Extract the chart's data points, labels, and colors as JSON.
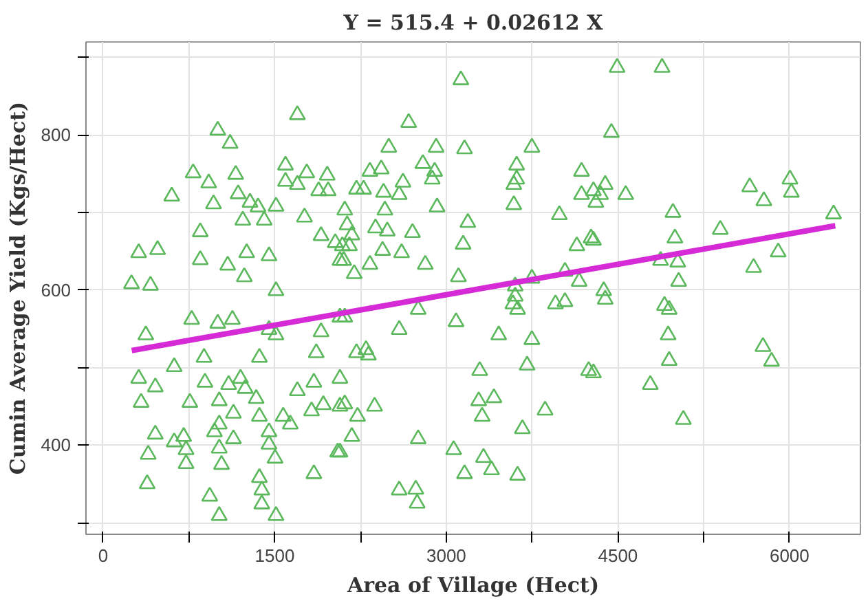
{
  "chart_data": {
    "type": "scatter",
    "title": "Y = 515.4 + 0.02612 X",
    "xlabel": "Area of Village (Hect)",
    "ylabel": "Cumin Average Yield (Kgs/Hect)",
    "xlim": [
      -150,
      6620
    ],
    "ylim": [
      285,
      920
    ],
    "xticks": [
      0,
      {
        "value": 750,
        "label": null
      },
      1500,
      {
        "value": 2250,
        "label": null
      },
      3000,
      {
        "value": 3750,
        "label": null
      },
      4500,
      {
        "value": 5250,
        "label": null
      },
      6000
    ],
    "yticks": [
      {
        "value": 300,
        "label": null
      },
      400,
      {
        "value": 500,
        "label": null
      },
      600,
      {
        "value": 700,
        "label": null
      },
      800,
      {
        "value": 900,
        "label": null
      }
    ],
    "grid": true,
    "series": [
      {
        "color": "#5cb85c",
        "marker": "triangle",
        "x": [
          1698,
          1002,
          1110,
          787,
          923,
          1159,
          600,
          965,
          1180,
          1594,
          1780,
          1959,
          1698,
          1884,
          1967,
          1594,
          1284,
          1354,
          1511,
          1221,
          1408,
          1760,
          1905,
          2029,
          849,
          311,
          476,
          849,
          1089,
          1255,
          1450,
          1234,
          248,
          414,
          1511,
          2070,
          3127,
          2671,
          2497,
          2911,
          3159,
          3748,
          2795,
          2332,
          2431,
          2898,
          2877,
          2621,
          2215,
          2277,
          2451,
          2588,
          3615,
          3590,
          3615,
          4182,
          4182,
          4286,
          4307,
          3590,
          2919,
          2112,
          2463,
          3188,
          3988,
          2381,
          2484,
          2704,
          2133,
          2174,
          2091,
          2153,
          3147,
          2443,
          2609,
          2103,
          2332,
          2816,
          2195,
          4141,
          4265,
          3106,
          3748,
          4037,
          4161,
          3602,
          4493,
          4886,
          4443,
          4389,
          4348,
          4568,
          5652,
          5776,
          6004,
          6016,
          4981,
          4286,
          4998,
          5395,
          6385,
          4873,
          5023,
          5901,
          5686,
          5031,
          4376,
          373,
          774,
          1002,
          1130,
          1450,
          1511,
          1905,
          2070,
          1863,
          1366,
          882,
          621,
          311,
          456,
          332,
          758,
          890,
          1097,
          1201,
          1242,
          1338,
          1015,
          1698,
          1842,
          1925,
          1822,
          2070,
          1139,
          1015,
          1366,
          1574,
          1636,
          456,
          621,
          704,
          973,
          1139,
          1450,
          1450,
          394,
          725,
          725,
          1015,
          1503,
          1035,
          2050,
          385,
          1842,
          1366,
          1387,
          1387,
          932,
          1015,
          1511,
          2112,
          2588,
          2754,
          3085,
          3458,
          3748,
          3602,
          3623,
          3582,
          3706,
          3292,
          4244,
          3954,
          4037,
          2215,
          2298,
          2319,
          2070,
          2112,
          2224,
          2373,
          2174,
          2070,
          3283,
          3416,
          3313,
          3863,
          3665,
          2754,
          3064,
          3325,
          3395,
          3159,
          3623,
          2588,
          2733,
          2745,
          4389,
          4907,
          4948,
          4939,
          4948,
          4286,
          4783,
          5072,
          5768,
          5843
        ],
        "values": [
          826,
          806,
          789,
          751,
          738,
          749,
          721,
          711,
          724,
          761,
          751,
          748,
          736,
          728,
          728,
          740,
          713,
          707,
          708,
          690,
          690,
          694,
          670,
          661,
          675,
          648,
          652,
          639,
          632,
          648,
          644,
          617,
          608,
          606,
          599,
          638,
          871,
          816,
          784,
          784,
          782,
          784,
          763,
          753,
          756,
          753,
          743,
          739,
          730,
          730,
          726,
          723,
          761,
          736,
          743,
          753,
          723,
          728,
          713,
          710,
          707,
          703,
          703,
          687,
          697,
          680,
          676,
          674,
          684,
          671,
          657,
          657,
          659,
          651,
          648,
          638,
          633,
          633,
          621,
          657,
          667,
          617,
          615,
          624,
          611,
          605,
          887,
          887,
          803,
          736,
          723,
          723,
          733,
          715,
          743,
          726,
          700,
          664,
          667,
          678,
          698,
          638,
          636,
          649,
          629,
          611,
          599,
          542,
          562,
          557,
          562,
          549,
          542,
          546,
          565,
          519,
          513,
          513,
          501,
          486,
          475,
          455,
          455,
          481,
          478,
          486,
          473,
          460,
          457,
          470,
          481,
          452,
          444,
          450,
          441,
          427,
          437,
          437,
          427,
          414,
          404,
          411,
          417,
          408,
          417,
          401,
          388,
          394,
          376,
          396,
          383,
          375,
          391,
          350,
          363,
          358,
          342,
          324,
          334,
          309,
          309,
          565,
          549,
          575,
          559,
          542,
          536,
          592,
          575,
          582,
          503,
          496,
          496,
          582,
          585,
          519,
          523,
          516,
          486,
          453,
          437,
          450,
          411,
          391,
          457,
          461,
          437,
          445,
          421,
          408,
          394,
          384,
          368,
          363,
          361,
          342,
          343,
          325,
          588,
          580,
          575,
          542,
          509,
          493,
          478,
          433,
          527,
          508
        ]
      },
      {
        "type": "line",
        "color": "#d62ad6",
        "line_style": "solid",
        "x": [
          250,
          6400
        ],
        "values": [
          522,
          683
        ]
      }
    ]
  }
}
